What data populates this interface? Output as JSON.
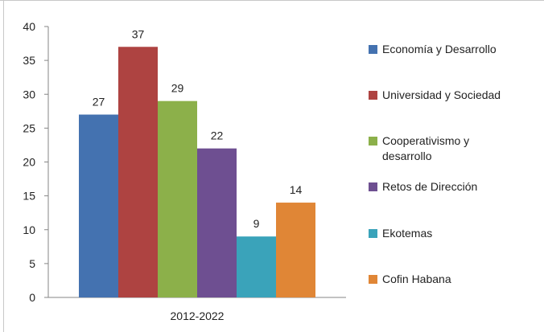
{
  "chart_data": {
    "type": "bar",
    "categories": [
      "2012-2022"
    ],
    "series": [
      {
        "name": "Economía y Desarrollo",
        "values": [
          27
        ],
        "color": "#4472b0"
      },
      {
        "name": "Universidad y Sociedad",
        "values": [
          37
        ],
        "color": "#ae4341"
      },
      {
        "name": "Cooperativismo y desarrollo",
        "values": [
          29
        ],
        "color": "#8cb04a"
      },
      {
        "name": "Retos de Dirección",
        "values": [
          22
        ],
        "color": "#6e4f91"
      },
      {
        "name": "Ekotemas",
        "values": [
          9
        ],
        "color": "#3aa3ba"
      },
      {
        "name": "Cofin Habana",
        "values": [
          14
        ],
        "color": "#e08636"
      }
    ],
    "ylim": [
      0,
      40
    ],
    "yticks": [
      0,
      5,
      10,
      15,
      20,
      25,
      30,
      35,
      40
    ],
    "title": "",
    "xlabel": "",
    "ylabel": "",
    "grid": false,
    "legend": "right"
  }
}
